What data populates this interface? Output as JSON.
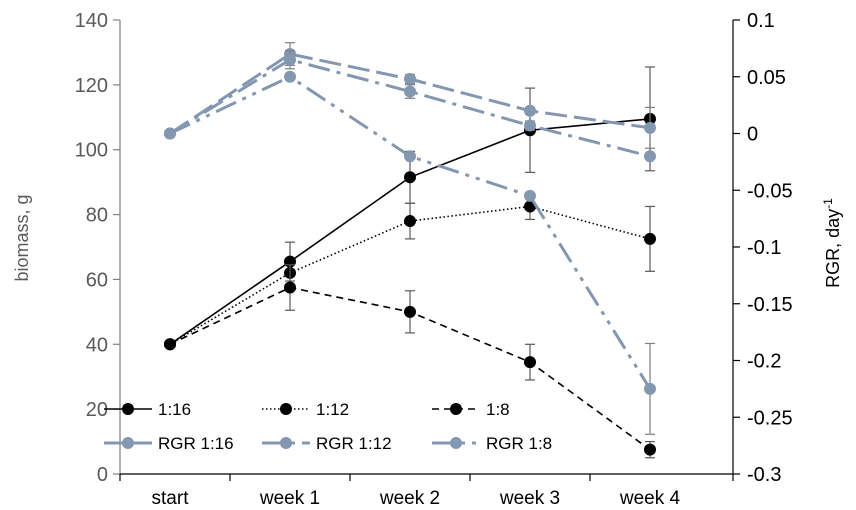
{
  "chart_data": {
    "type": "line",
    "categories": [
      "start",
      "week 1",
      "week 2",
      "week 3",
      "week 4"
    ],
    "y_left": {
      "label": "biomass, g",
      "lim": [
        0,
        140
      ],
      "ticks": [
        "0",
        "20",
        "40",
        "60",
        "80",
        "100",
        "120",
        "140"
      ]
    },
    "y_right": {
      "label_main": "RGR, day",
      "label_sup": "-1",
      "lim": [
        -0.3,
        0.1
      ],
      "ticks": [
        "-0.3",
        "-0.25",
        "-0.2",
        "-0.15",
        "-0.1",
        "-0.05",
        "0",
        "0.05",
        "0.1"
      ]
    },
    "series": [
      {
        "name": "1:16",
        "axis": "left",
        "color": "#000000",
        "dash": "solid",
        "values": [
          40,
          65.5,
          91.5,
          106,
          109.5
        ],
        "error": [
          0,
          6,
          8,
          13,
          16
        ]
      },
      {
        "name": "1:12",
        "axis": "left",
        "color": "#000000",
        "dash": "dotted",
        "values": [
          40,
          62,
          78,
          82.5,
          72.5
        ],
        "error": [
          0,
          0,
          5.5,
          4,
          10
        ]
      },
      {
        "name": "1:8",
        "axis": "left",
        "color": "#000000",
        "dash": "dash",
        "values": [
          40,
          57.5,
          50,
          34.5,
          7.5
        ],
        "error": [
          0,
          7,
          6.5,
          5.5,
          2.5
        ]
      },
      {
        "name": "RGR 1:16",
        "axis": "right",
        "color": "#8497b0",
        "dash": "longdash",
        "values": [
          0,
          0.07,
          0.048,
          0.02,
          0.005
        ],
        "error": [
          0,
          0.01,
          0.004,
          0.003,
          0.018
        ]
      },
      {
        "name": "RGR 1:12",
        "axis": "right",
        "color": "#8497b0",
        "dash": "longdashdot",
        "values": [
          0,
          0.065,
          0.037,
          0.007,
          -0.02
        ],
        "error": [
          0,
          0.008,
          0.006,
          0.004,
          0.0
        ]
      },
      {
        "name": "RGR 1:8",
        "axis": "right",
        "color": "#8497b0",
        "dash": "longdashdotdot",
        "values": [
          0,
          0.05,
          -0.02,
          -0.055,
          -0.225
        ],
        "error": [
          0,
          0.0,
          0.0,
          0.0,
          0.04
        ]
      }
    ],
    "legend_placement": "bottom-left, inside plot",
    "grid": false
  }
}
